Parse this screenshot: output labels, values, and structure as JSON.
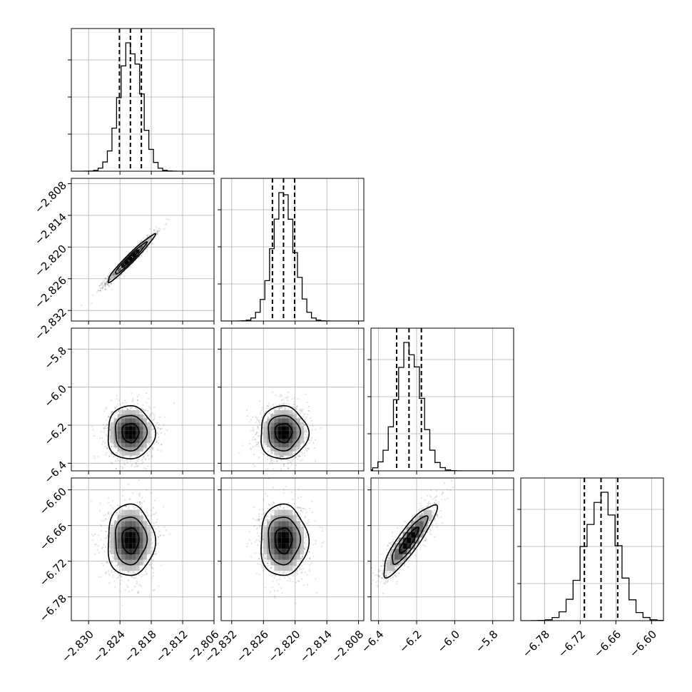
{
  "chart_data": {
    "type": "scatter",
    "kind": "corner-plot",
    "grid": true,
    "params": [
      {
        "mean": -2.822,
        "sd": 0.0021,
        "quantiles": [
          -2.8241,
          -2.822,
          -2.8199
        ],
        "range": [
          -2.8333,
          -2.806
        ],
        "ticks": [
          -2.83,
          -2.824,
          -2.818,
          -2.812,
          -2.806
        ],
        "ticklabels": [
          "−2.830",
          "−2.824",
          "−2.818",
          "−2.812",
          "−2.806"
        ]
      },
      {
        "mean": -2.8222,
        "sd": 0.0021,
        "quantiles": [
          -2.8243,
          -2.8222,
          -2.8201
        ],
        "range": [
          -2.834,
          -2.807
        ],
        "ticks": [
          -2.832,
          -2.826,
          -2.82,
          -2.814,
          -2.808
        ],
        "ticklabels": [
          "−2.832",
          "−2.826",
          "−2.820",
          "−2.814",
          "−2.808"
        ]
      },
      {
        "mean": -6.24,
        "sd": 0.065,
        "quantiles": [
          -6.305,
          -6.24,
          -6.175
        ],
        "range": [
          -6.44,
          -5.69
        ],
        "ticks": [
          -6.4,
          -6.2,
          -6.0,
          -5.8
        ],
        "ticklabels": [
          "−6.4",
          "−6.2",
          "−6.0",
          "−5.8"
        ]
      },
      {
        "mean": -6.685,
        "sd": 0.028,
        "quantiles": [
          -6.713,
          -6.685,
          -6.657
        ],
        "range": [
          -6.82,
          -6.58
        ],
        "ticks": [
          -6.78,
          -6.72,
          -6.66,
          -6.6
        ],
        "ticklabels": [
          "−6.78",
          "−6.72",
          "−6.66",
          "−6.60"
        ]
      }
    ],
    "correlations": {
      "0-1": 0.97,
      "2-3": 0.88,
      "0-2": 0.0,
      "1-2": 0.0,
      "0-3": 0.0,
      "1-3": 0.0
    },
    "y_ticks": {
      "1": {
        "ticks": [
          -2.808,
          -2.814,
          -2.82,
          -2.826,
          -2.832
        ],
        "ticklabels": [
          "−2.808",
          "−2.814",
          "−2.820",
          "−2.826",
          "−2.832"
        ]
      },
      "2": {
        "ticks": [
          -5.8,
          -6.0,
          -6.2,
          -6.4
        ],
        "ticklabels": [
          "−5.8",
          "−6.0",
          "−6.2",
          "−6.4"
        ]
      },
      "3": {
        "ticks": [
          -6.6,
          -6.66,
          -6.72,
          -6.78
        ],
        "ticklabels": [
          "−6.60",
          "−6.66",
          "−6.72",
          "−6.78"
        ]
      }
    }
  }
}
